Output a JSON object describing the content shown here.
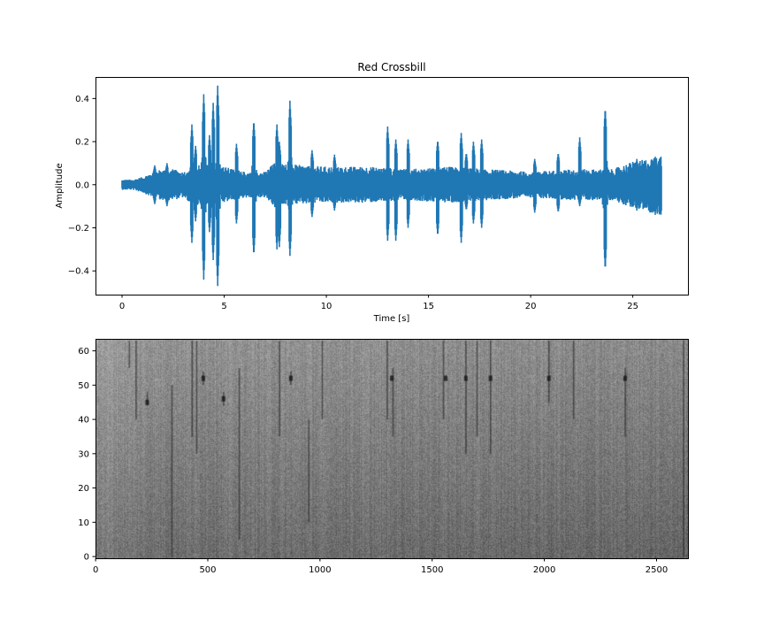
{
  "chart_data": [
    {
      "type": "line",
      "title": "Red Crossbill",
      "xlabel": "Time [s]",
      "ylabel": "Amplitude",
      "xlim": [
        -1.3,
        27.7
      ],
      "ylim": [
        -0.51,
        0.5
      ],
      "xticks": [
        0,
        5,
        10,
        15,
        20,
        25
      ],
      "xtick_labels": [
        "0",
        "5",
        "10",
        "15",
        "20",
        "25"
      ],
      "yticks": [
        0.4,
        0.2,
        0.0,
        -0.2,
        -0.4
      ],
      "ytick_labels": [
        "0.4",
        "0.2",
        "0.0",
        "−0.2",
        "−0.4"
      ],
      "grid": false,
      "color": "#1f77b4",
      "duration": 26.4,
      "envelope": {
        "t": [
          0,
          0.5,
          1.0,
          1.5,
          2.0,
          2.5,
          3.0,
          3.5,
          5.0,
          6.0,
          7.0,
          7.5,
          8.0,
          10,
          12,
          14,
          16,
          18,
          20,
          22,
          24,
          25,
          26.4
        ],
        "max": [
          0.02,
          0.02,
          0.03,
          0.05,
          0.06,
          0.06,
          0.05,
          0.08,
          0.07,
          0.05,
          0.05,
          0.09,
          0.08,
          0.07,
          0.07,
          0.06,
          0.07,
          0.06,
          0.05,
          0.06,
          0.06,
          0.09,
          0.11
        ],
        "min": [
          -0.02,
          -0.02,
          -0.03,
          -0.05,
          -0.06,
          -0.06,
          -0.05,
          -0.08,
          -0.07,
          -0.05,
          -0.05,
          -0.09,
          -0.08,
          -0.07,
          -0.07,
          -0.06,
          -0.07,
          -0.06,
          -0.05,
          -0.06,
          -0.06,
          -0.09,
          -0.12
        ]
      },
      "spikes": [
        {
          "t": 1.6,
          "max": 0.09,
          "min": -0.09
        },
        {
          "t": 2.2,
          "max": 0.1,
          "min": -0.1
        },
        {
          "t": 3.42,
          "max": 0.28,
          "min": -0.27
        },
        {
          "t": 3.6,
          "max": 0.18,
          "min": -0.17
        },
        {
          "t": 4.0,
          "max": 0.42,
          "min": -0.44
        },
        {
          "t": 4.28,
          "max": 0.23,
          "min": -0.22
        },
        {
          "t": 4.46,
          "max": 0.38,
          "min": -0.35
        },
        {
          "t": 4.68,
          "max": 0.46,
          "min": -0.47
        },
        {
          "t": 5.6,
          "max": 0.19,
          "min": -0.18
        },
        {
          "t": 6.45,
          "max": 0.3,
          "min": -0.33
        },
        {
          "t": 7.58,
          "max": 0.28,
          "min": -0.3
        },
        {
          "t": 7.7,
          "max": 0.2,
          "min": -0.29
        },
        {
          "t": 8.22,
          "max": 0.39,
          "min": -0.33
        },
        {
          "t": 9.3,
          "max": 0.16,
          "min": -0.15
        },
        {
          "t": 10.4,
          "max": 0.14,
          "min": -0.12
        },
        {
          "t": 13.0,
          "max": 0.27,
          "min": -0.26
        },
        {
          "t": 13.4,
          "max": 0.21,
          "min": -0.26
        },
        {
          "t": 14.0,
          "max": 0.21,
          "min": -0.2
        },
        {
          "t": 15.45,
          "max": 0.21,
          "min": -0.24
        },
        {
          "t": 16.6,
          "max": 0.24,
          "min": -0.27
        },
        {
          "t": 16.85,
          "max": 0.15,
          "min": -0.12
        },
        {
          "t": 17.2,
          "max": 0.2,
          "min": -0.18
        },
        {
          "t": 17.6,
          "max": 0.21,
          "min": -0.2
        },
        {
          "t": 20.2,
          "max": 0.12,
          "min": -0.13
        },
        {
          "t": 21.35,
          "max": 0.15,
          "min": -0.13
        },
        {
          "t": 22.4,
          "max": 0.22,
          "min": -0.1
        },
        {
          "t": 23.65,
          "max": 0.36,
          "min": -0.4
        },
        {
          "t": 25.2,
          "max": 0.12,
          "min": -0.12
        },
        {
          "t": 26.1,
          "max": 0.13,
          "min": -0.14
        }
      ]
    },
    {
      "type": "heatmap",
      "colormap": "gray",
      "xlim": [
        -0.5,
        2640
      ],
      "ylim": [
        -0.5,
        63.5
      ],
      "xticks": [
        0,
        500,
        1000,
        1500,
        2000,
        2500
      ],
      "xtick_labels": [
        "0",
        "500",
        "1000",
        "1500",
        "2000",
        "2500"
      ],
      "yticks": [
        0,
        10,
        20,
        30,
        40,
        50,
        60
      ],
      "ytick_labels": [
        "0",
        "10",
        "20",
        "30",
        "40",
        "50",
        "60"
      ],
      "n_rows": 64,
      "dark_streaks": [
        {
          "x": 150,
          "y0": 55,
          "y1": 63
        },
        {
          "x": 180,
          "y0": 40,
          "y1": 63
        },
        {
          "x": 230,
          "y0": 44,
          "y1": 48
        },
        {
          "x": 340,
          "y0": 0,
          "y1": 50
        },
        {
          "x": 430,
          "y0": 35,
          "y1": 63
        },
        {
          "x": 450,
          "y0": 30,
          "y1": 63
        },
        {
          "x": 480,
          "y0": 50,
          "y1": 54
        },
        {
          "x": 570,
          "y0": 44,
          "y1": 48
        },
        {
          "x": 640,
          "y0": 5,
          "y1": 55
        },
        {
          "x": 820,
          "y0": 35,
          "y1": 63
        },
        {
          "x": 870,
          "y0": 50,
          "y1": 54
        },
        {
          "x": 950,
          "y0": 10,
          "y1": 40
        },
        {
          "x": 1010,
          "y0": 40,
          "y1": 63
        },
        {
          "x": 1300,
          "y0": 40,
          "y1": 63
        },
        {
          "x": 1325,
          "y0": 35,
          "y1": 55
        },
        {
          "x": 1550,
          "y0": 40,
          "y1": 63
        },
        {
          "x": 1650,
          "y0": 30,
          "y1": 63
        },
        {
          "x": 1700,
          "y0": 35,
          "y1": 63
        },
        {
          "x": 1760,
          "y0": 30,
          "y1": 63
        },
        {
          "x": 2020,
          "y0": 45,
          "y1": 63
        },
        {
          "x": 2130,
          "y0": 40,
          "y1": 63
        },
        {
          "x": 2360,
          "y0": 35,
          "y1": 55
        },
        {
          "x": 2620,
          "y0": 0,
          "y1": 63
        }
      ],
      "dark_blobs": [
        {
          "x": 230,
          "y": 45
        },
        {
          "x": 480,
          "y": 52
        },
        {
          "x": 570,
          "y": 46
        },
        {
          "x": 870,
          "y": 52
        },
        {
          "x": 1320,
          "y": 52
        },
        {
          "x": 1560,
          "y": 52
        },
        {
          "x": 1650,
          "y": 52
        },
        {
          "x": 1760,
          "y": 52
        },
        {
          "x": 2020,
          "y": 52
        },
        {
          "x": 2360,
          "y": 52
        }
      ]
    }
  ]
}
